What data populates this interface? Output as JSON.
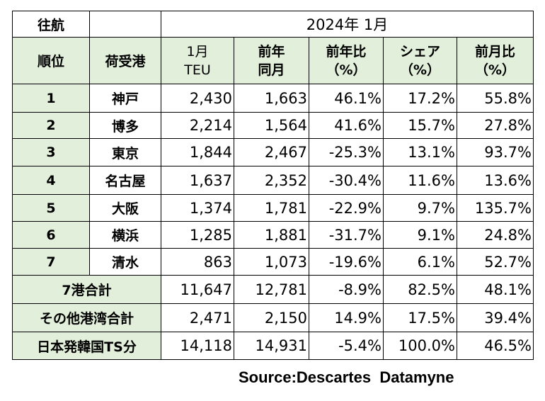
{
  "header": {
    "direction_label": "往航",
    "period_title": "2024年 1月"
  },
  "columns": {
    "rank": "順位",
    "port": "荷受港",
    "teu_line1": "1月",
    "teu_line2": "TEU",
    "prev_year_line1": "前年",
    "prev_year_line2": "同月",
    "yoy_line1": "前年比",
    "yoy_line2": "（%）",
    "share_line1": "シェア",
    "share_line2": "（%）",
    "mom_line1": "前月比",
    "mom_line2": "（%）"
  },
  "rows": [
    {
      "rank": "1",
      "port": "神戸",
      "teu": "2,430",
      "prev": "1,663",
      "yoy": "46.1%",
      "share": "17.2%",
      "mom": "55.8%"
    },
    {
      "rank": "2",
      "port": "博多",
      "teu": "2,214",
      "prev": "1,564",
      "yoy": "41.6%",
      "share": "15.7%",
      "mom": "27.8%"
    },
    {
      "rank": "3",
      "port": "東京",
      "teu": "1,844",
      "prev": "2,467",
      "yoy": "-25.3%",
      "share": "13.1%",
      "mom": "93.7%"
    },
    {
      "rank": "4",
      "port": "名古屋",
      "teu": "1,637",
      "prev": "2,352",
      "yoy": "-30.4%",
      "share": "11.6%",
      "mom": "13.6%"
    },
    {
      "rank": "5",
      "port": "大阪",
      "teu": "1,374",
      "prev": "1,781",
      "yoy": "-22.9%",
      "share": "9.7%",
      "mom": "135.7%"
    },
    {
      "rank": "6",
      "port": "横浜",
      "teu": "1,285",
      "prev": "1,881",
      "yoy": "-31.7%",
      "share": "9.1%",
      "mom": "24.8%"
    },
    {
      "rank": "7",
      "port": "清水",
      "teu": "863",
      "prev": "1,073",
      "yoy": "-19.6%",
      "share": "6.1%",
      "mom": "52.7%"
    }
  ],
  "totals": [
    {
      "label": "7港合計",
      "teu": "11,647",
      "prev": "12,781",
      "yoy": "-8.9%",
      "share": "82.5%",
      "mom": "48.1%"
    },
    {
      "label": "その他港湾合計",
      "teu": "2,471",
      "prev": "2,150",
      "yoy": "14.9%",
      "share": "17.5%",
      "mom": "39.4%"
    },
    {
      "label": "日本発韓国TS分",
      "teu": "14,118",
      "prev": "14,931",
      "yoy": "-5.4%",
      "share": "100.0%",
      "mom": "46.5%"
    }
  ],
  "source": "Source:Descartes  Datamyne"
}
